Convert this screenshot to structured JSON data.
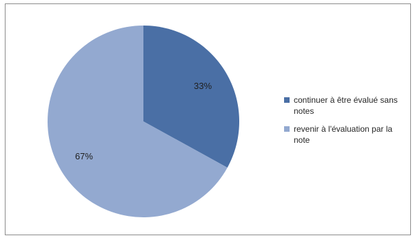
{
  "chart_data": {
    "type": "pie",
    "title": "",
    "legend_position": "right",
    "slices": [
      {
        "name": "continuer à être évalué sans notes",
        "value": 33,
        "label": "33%",
        "color": "#4a6fa5"
      },
      {
        "name": "revenir à l'évaluation par la note",
        "value": 67,
        "label": "67%",
        "color": "#93a9d0"
      }
    ]
  }
}
